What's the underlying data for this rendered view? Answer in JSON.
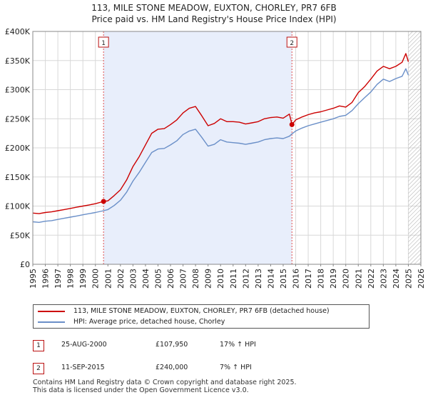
{
  "title_line1": "113, MILE STONE MEADOW, EUXTON, CHORLEY, PR7 6FB",
  "title_line2": "Price paid vs. HM Land Registry's House Price Index (HPI)",
  "legend": [
    {
      "label": "113, MILE STONE MEADOW, EUXTON, CHORLEY, PR7 6FB (detached house)",
      "color": "#cc0000"
    },
    {
      "label": "HPI: Average price, detached house, Chorley",
      "color": "#6a8fc8"
    }
  ],
  "markers": [
    {
      "num": "1",
      "date": "25-AUG-2000",
      "price": "£107,950",
      "hpi": "17% ↑ HPI"
    },
    {
      "num": "2",
      "date": "11-SEP-2015",
      "price": "£240,000",
      "hpi": "7% ↑ HPI"
    }
  ],
  "footer_line1": "Contains HM Land Registry data © Crown copyright and database right 2025.",
  "footer_line2": "This data is licensed under the Open Government Licence v3.0.",
  "colors": {
    "price": "#cc0000",
    "hpi": "#6a8fc8",
    "band": "#e8eefb",
    "grid": "#d8d8d8",
    "marker_line": "#e05050"
  },
  "chart_data": {
    "type": "line",
    "title": "Price paid vs. HM Land Registry's House Price Index (HPI)",
    "xlim": [
      1995,
      2026
    ],
    "ylim": [
      0,
      400000
    ],
    "y_ticks": [
      0,
      50000,
      100000,
      150000,
      200000,
      250000,
      300000,
      350000,
      400000
    ],
    "y_tick_labels": [
      "£0",
      "£50K",
      "£100K",
      "£150K",
      "£200K",
      "£250K",
      "£300K",
      "£350K",
      "£400K"
    ],
    "x_ticks": [
      1995,
      1996,
      1997,
      1998,
      1999,
      2000,
      2001,
      2002,
      2003,
      2004,
      2005,
      2006,
      2007,
      2008,
      2009,
      2010,
      2011,
      2012,
      2013,
      2014,
      2015,
      2016,
      2017,
      2018,
      2019,
      2020,
      2021,
      2022,
      2023,
      2024,
      2025,
      2026
    ],
    "shaded_band": [
      2000.65,
      2015.7
    ],
    "future_hatch_from": 2025.0,
    "events": [
      {
        "label": "1",
        "x": 2000.65,
        "y": 107950
      },
      {
        "label": "2",
        "x": 2015.7,
        "y": 240000
      }
    ],
    "series": [
      {
        "name": "113, MILE STONE MEADOW, EUXTON, CHORLEY, PR7 6FB (detached house)",
        "x": [
          1995.0,
          1995.5,
          1996.0,
          1996.5,
          1997.0,
          1997.5,
          1998.0,
          1998.5,
          1999.0,
          1999.5,
          2000.0,
          2000.65,
          2001.0,
          2001.5,
          2002.0,
          2002.5,
          2003.0,
          2003.5,
          2004.0,
          2004.5,
          2005.0,
          2005.5,
          2006.0,
          2006.5,
          2007.0,
          2007.5,
          2008.0,
          2008.5,
          2009.0,
          2009.5,
          2010.0,
          2010.5,
          2011.0,
          2011.5,
          2012.0,
          2012.5,
          2013.0,
          2013.5,
          2014.0,
          2014.5,
          2015.0,
          2015.5,
          2015.7,
          2016.0,
          2016.5,
          2017.0,
          2017.5,
          2018.0,
          2018.5,
          2019.0,
          2019.5,
          2020.0,
          2020.5,
          2021.0,
          2021.5,
          2022.0,
          2022.5,
          2023.0,
          2023.5,
          2024.0,
          2024.5,
          2024.8,
          2025.0
        ],
        "values": [
          88000,
          87000,
          89000,
          90000,
          92000,
          94000,
          96000,
          98000,
          100000,
          102000,
          104000,
          107950,
          109000,
          118000,
          128000,
          145000,
          168000,
          185000,
          205000,
          225000,
          232000,
          233000,
          240000,
          248000,
          260000,
          268000,
          271000,
          255000,
          238000,
          242000,
          250000,
          245000,
          245000,
          244000,
          241000,
          243000,
          245000,
          250000,
          252000,
          253000,
          251000,
          258000,
          240000,
          248000,
          253000,
          257000,
          260000,
          262000,
          265000,
          268000,
          272000,
          270000,
          278000,
          295000,
          305000,
          318000,
          332000,
          340000,
          336000,
          340000,
          347000,
          362000,
          348000
        ]
      },
      {
        "name": "HPI: Average price, detached house, Chorley",
        "x": [
          1995.0,
          1995.5,
          1996.0,
          1996.5,
          1997.0,
          1997.5,
          1998.0,
          1998.5,
          1999.0,
          1999.5,
          2000.0,
          2000.65,
          2001.0,
          2001.5,
          2002.0,
          2002.5,
          2003.0,
          2003.5,
          2004.0,
          2004.5,
          2005.0,
          2005.5,
          2006.0,
          2006.5,
          2007.0,
          2007.5,
          2008.0,
          2008.5,
          2009.0,
          2009.5,
          2010.0,
          2010.5,
          2011.0,
          2011.5,
          2012.0,
          2012.5,
          2013.0,
          2013.5,
          2014.0,
          2014.5,
          2015.0,
          2015.5,
          2015.7,
          2016.0,
          2016.5,
          2017.0,
          2017.5,
          2018.0,
          2018.5,
          2019.0,
          2019.5,
          2020.0,
          2020.5,
          2021.0,
          2021.5,
          2022.0,
          2022.5,
          2023.0,
          2023.5,
          2024.0,
          2024.5,
          2024.8,
          2025.0
        ],
        "values": [
          73000,
          72000,
          74000,
          75000,
          77000,
          79000,
          81000,
          83000,
          85000,
          87000,
          89000,
          92000,
          94000,
          101000,
          110000,
          124000,
          143000,
          158000,
          175000,
          192000,
          198000,
          199000,
          205000,
          212000,
          223000,
          229000,
          232000,
          218000,
          203000,
          206000,
          214000,
          210000,
          209000,
          208000,
          206000,
          208000,
          210000,
          214000,
          216000,
          217000,
          216000,
          220000,
          224000,
          229000,
          234000,
          238000,
          241000,
          244000,
          247000,
          250000,
          254000,
          256000,
          264000,
          276000,
          286000,
          296000,
          309000,
          318000,
          314000,
          319000,
          323000,
          336000,
          325000
        ]
      }
    ]
  }
}
